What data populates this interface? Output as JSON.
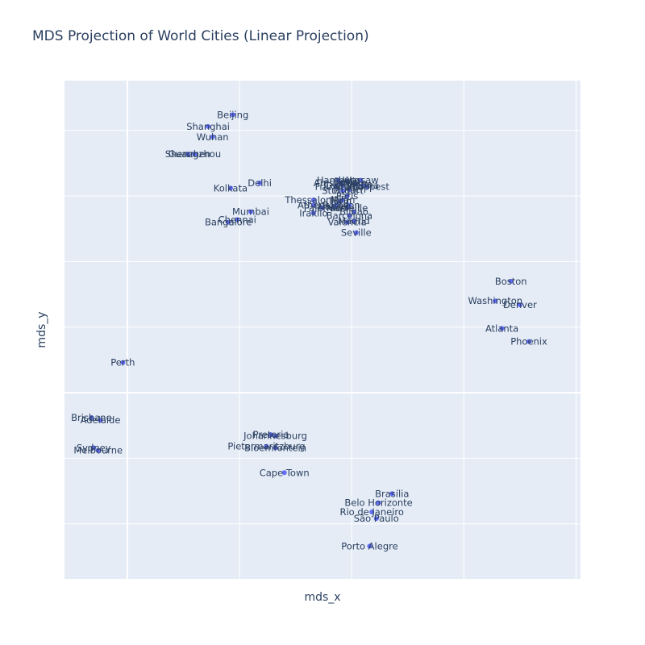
{
  "colors": {
    "plot_bg": "#E5ECF6",
    "grid": "#ffffff",
    "marker": "#636efa",
    "text": "#2a3f5f",
    "page_bg": "#ffffff"
  },
  "chart_data": {
    "type": "scatter",
    "title": "MDS Projection of World Cities (Linear Projection)",
    "xlabel": "mds_x",
    "ylabel": "mds_y",
    "xlim": [
      -0.28,
      2.02
    ],
    "ylim": [
      -1.42,
      2.38
    ],
    "grid": true,
    "show_tick_labels": false,
    "legend": "none",
    "points": [
      {
        "label": "Beijing",
        "x": 0.47,
        "y": 2.12
      },
      {
        "label": "Shanghai",
        "x": 0.36,
        "y": 2.03
      },
      {
        "label": "Wuhan",
        "x": 0.38,
        "y": 1.95
      },
      {
        "label": "Guangzhou",
        "x": 0.3,
        "y": 1.82
      },
      {
        "label": "Shenzhen",
        "x": 0.27,
        "y": 1.82
      },
      {
        "label": "Delhi",
        "x": 0.59,
        "y": 1.6
      },
      {
        "label": "Kolkata",
        "x": 0.46,
        "y": 1.56
      },
      {
        "label": "Mumbai",
        "x": 0.55,
        "y": 1.38
      },
      {
        "label": "Chennai",
        "x": 0.49,
        "y": 1.32
      },
      {
        "label": "Bangalore",
        "x": 0.45,
        "y": 1.3
      },
      {
        "label": "Hamburg",
        "x": 0.94,
        "y": 1.62
      },
      {
        "label": "Berlin",
        "x": 0.98,
        "y": 1.61
      },
      {
        "label": "Warsaw",
        "x": 1.04,
        "y": 1.62
      },
      {
        "label": "Prague",
        "x": 1.02,
        "y": 1.59
      },
      {
        "label": "Amsterdam",
        "x": 0.95,
        "y": 1.6
      },
      {
        "label": "Cologne",
        "x": 0.96,
        "y": 1.58
      },
      {
        "label": "Frankfurt",
        "x": 0.93,
        "y": 1.57
      },
      {
        "label": "Vienna",
        "x": 1.05,
        "y": 1.58
      },
      {
        "label": "Budapest",
        "x": 1.07,
        "y": 1.57
      },
      {
        "label": "Munich",
        "x": 0.99,
        "y": 1.55
      },
      {
        "label": "Stuttgart",
        "x": 0.96,
        "y": 1.54
      },
      {
        "label": "Paris",
        "x": 0.98,
        "y": 1.5
      },
      {
        "label": "Thessaloniki",
        "x": 0.83,
        "y": 1.47
      },
      {
        "label": "Milan",
        "x": 0.96,
        "y": 1.47
      },
      {
        "label": "Turin",
        "x": 0.95,
        "y": 1.46
      },
      {
        "label": "Rome",
        "x": 0.93,
        "y": 1.43
      },
      {
        "label": "Naples",
        "x": 0.92,
        "y": 1.42
      },
      {
        "label": "Athens",
        "x": 0.83,
        "y": 1.43
      },
      {
        "label": "Palermo",
        "x": 0.87,
        "y": 1.41
      },
      {
        "label": "Marseille",
        "x": 0.98,
        "y": 1.41
      },
      {
        "label": "Lyon",
        "x": 0.99,
        "y": 1.43
      },
      {
        "label": "Iraklio",
        "x": 0.83,
        "y": 1.37
      },
      {
        "label": "Bilbao",
        "x": 1.01,
        "y": 1.38
      },
      {
        "label": "Barcelona",
        "x": 0.99,
        "y": 1.35
      },
      {
        "label": "Madrid",
        "x": 1.01,
        "y": 1.31
      },
      {
        "label": "Valencia",
        "x": 0.98,
        "y": 1.3
      },
      {
        "label": "Seville",
        "x": 1.02,
        "y": 1.22
      },
      {
        "label": "Boston",
        "x": 1.71,
        "y": 0.85
      },
      {
        "label": "Washington",
        "x": 1.64,
        "y": 0.7
      },
      {
        "label": "Denver",
        "x": 1.75,
        "y": 0.67
      },
      {
        "label": "Atlanta",
        "x": 1.67,
        "y": 0.49
      },
      {
        "label": "Phoenix",
        "x": 1.79,
        "y": 0.39
      },
      {
        "label": "Perth",
        "x": -0.02,
        "y": 0.23
      },
      {
        "label": "Brisbane",
        "x": -0.16,
        "y": -0.19
      },
      {
        "label": "Adelaide",
        "x": -0.12,
        "y": -0.21
      },
      {
        "label": "Sydney",
        "x": -0.15,
        "y": -0.42
      },
      {
        "label": "Melbourne",
        "x": -0.13,
        "y": -0.44
      },
      {
        "label": "Pretoria",
        "x": 0.64,
        "y": -0.32
      },
      {
        "label": "Johannesburg",
        "x": 0.66,
        "y": -0.33
      },
      {
        "label": "Pietermaritzburg",
        "x": 0.62,
        "y": -0.41
      },
      {
        "label": "Bloemfontein",
        "x": 0.66,
        "y": -0.42
      },
      {
        "label": "Cape Town",
        "x": 0.7,
        "y": -0.61
      },
      {
        "label": "Brasília",
        "x": 1.18,
        "y": -0.77
      },
      {
        "label": "Belo Horizonte",
        "x": 1.12,
        "y": -0.84
      },
      {
        "label": "Rio de Janeiro",
        "x": 1.09,
        "y": -0.91
      },
      {
        "label": "São Paulo",
        "x": 1.11,
        "y": -0.96
      },
      {
        "label": "Porto Alegre",
        "x": 1.08,
        "y": -1.17
      }
    ]
  }
}
